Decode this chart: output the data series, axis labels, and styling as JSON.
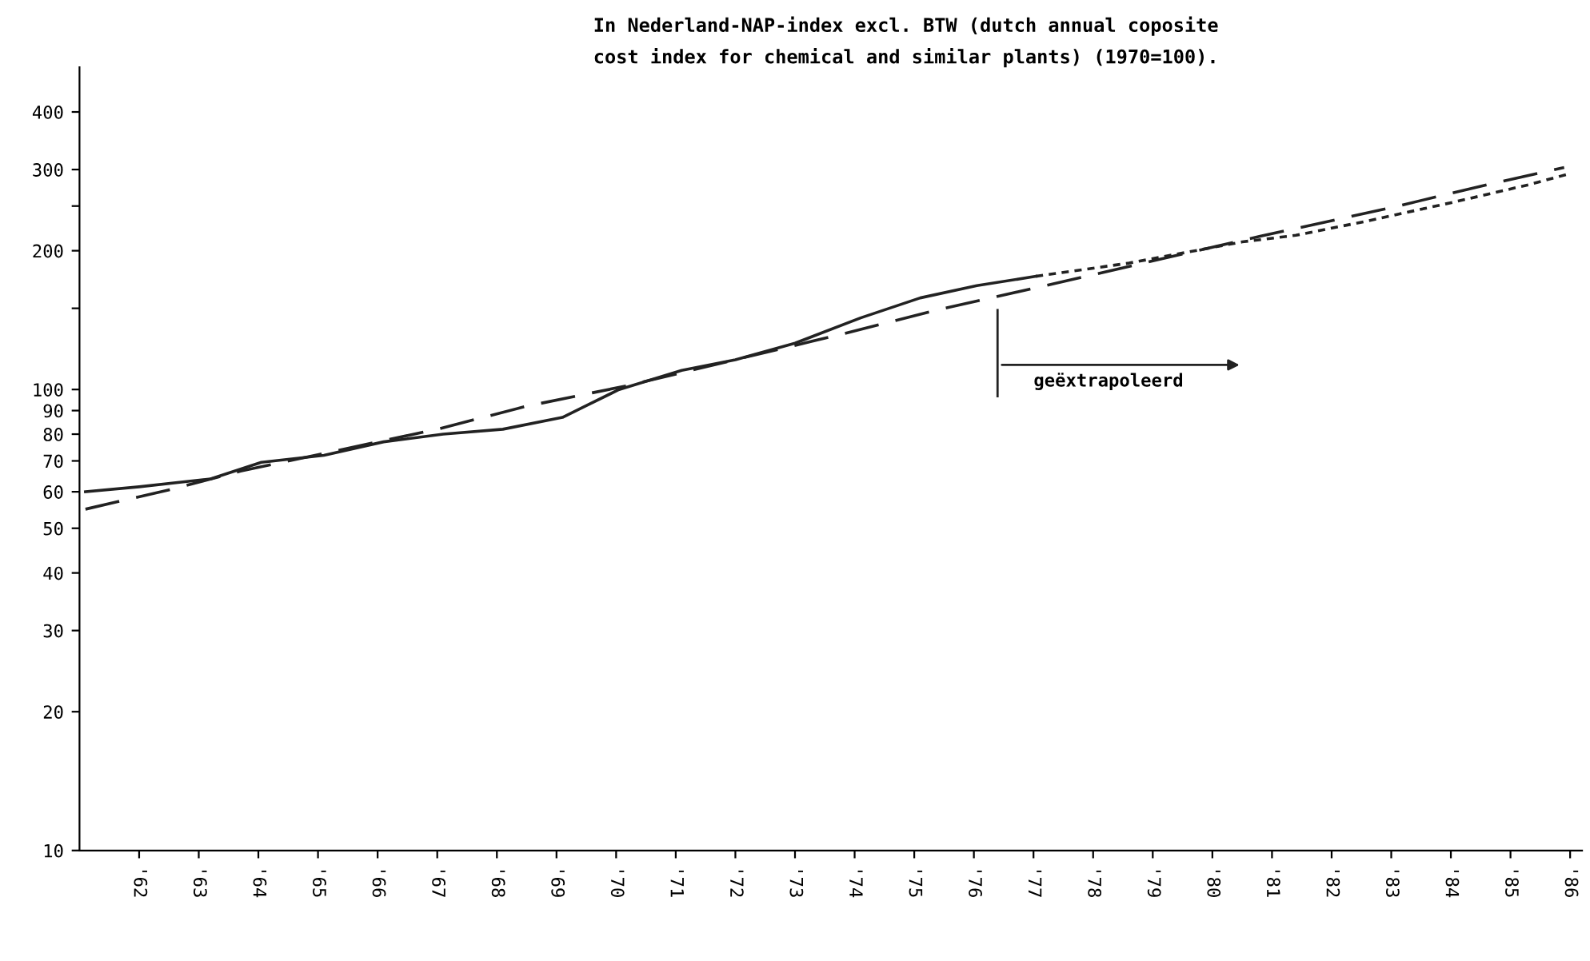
{
  "chart_data": {
    "type": "line",
    "title": "In Nederland-NAP-index excl. BTW (dutch annual coposite\ncost index for chemical and similar plants) (1970=100).",
    "series": [
      {
        "values": [
          60,
          61.5,
          64,
          69.5,
          72,
          77,
          80,
          82,
          87,
          100,
          110,
          116,
          126,
          143,
          158,
          168,
          176
        ],
        "x": [
          61.1,
          62.0,
          63.2,
          64.05,
          65.1,
          66.1,
          67.1,
          68.1,
          69.1,
          70.05,
          71.1,
          72.0,
          73.0,
          74.1,
          75.1,
          76.05,
          77.04
        ],
        "color": "#222222",
        "line_style": "solid"
      },
      {
        "values": [
          176,
          188,
          209,
          216,
          232,
          255,
          278,
          294
        ],
        "x": [
          77.04,
          78.6,
          80.5,
          81.4,
          82.6,
          84.05,
          85.3,
          86.0
        ],
        "color": "#222222",
        "line_style": "dotted"
      },
      {
        "values": [
          55,
          61,
          66.5,
          82,
          92,
          102,
          132,
          149,
          168,
          215,
          248,
          278,
          303
        ],
        "x": [
          61.1,
          62.6,
          63.7,
          67.0,
          68.5,
          70.2,
          73.8,
          75.4,
          77.2,
          80.8,
          83.0,
          84.6,
          85.9
        ],
        "color": "#222222",
        "line_style": "dashed"
      }
    ],
    "annotations": [
      "geëxtrapoleerd"
    ],
    "log": "y",
    "xlim": [
      61,
      86.2
    ],
    "xticks": [
      {
        "value": 62,
        "label": "'62"
      },
      {
        "value": 63,
        "label": "'63"
      },
      {
        "value": 64,
        "label": "'64"
      },
      {
        "value": 65,
        "label": "'65"
      },
      {
        "value": 66,
        "label": "'66"
      },
      {
        "value": 67,
        "label": "'67"
      },
      {
        "value": 68,
        "label": "'68"
      },
      {
        "value": 69,
        "label": "'69"
      },
      {
        "value": 70,
        "label": "'70"
      },
      {
        "value": 71,
        "label": "'71"
      },
      {
        "value": 72,
        "label": "'72"
      },
      {
        "value": 73,
        "label": "'73"
      },
      {
        "value": 74,
        "label": "'74"
      },
      {
        "value": 75,
        "label": "'75"
      },
      {
        "value": 76,
        "label": "'76"
      },
      {
        "value": 77,
        "label": "'77"
      },
      {
        "value": 78,
        "label": "'78"
      },
      {
        "value": 79,
        "label": "'79"
      },
      {
        "value": 80,
        "label": "'80"
      },
      {
        "value": 81,
        "label": "'81"
      },
      {
        "value": 82,
        "label": "'82"
      },
      {
        "value": 83,
        "label": "'83"
      },
      {
        "value": 84,
        "label": "'84"
      },
      {
        "value": 85,
        "label": "'85"
      },
      {
        "value": 86,
        "label": "'86"
      }
    ],
    "ylim": [
      10,
      500
    ],
    "yticks": [
      10,
      20,
      30,
      40,
      50,
      60,
      70,
      80,
      90,
      100,
      {
        "value": 150,
        "label": null
      },
      200,
      {
        "value": 250,
        "label": null
      },
      300,
      400
    ],
    "grid": false,
    "marker": "none"
  }
}
